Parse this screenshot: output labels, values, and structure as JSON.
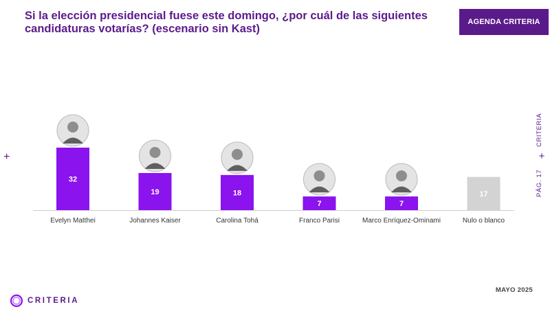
{
  "header": {
    "title_line1": "Si la elección presidencial fuese este domingo, ¿por cuál de las siguientes",
    "title_line2": "candidaturas votarías? (escenario sin Kast)",
    "agenda_button": "AGENDA CRITERIA"
  },
  "side": {
    "brand": "CRITERIA",
    "page": "PÁG. 17"
  },
  "footer": {
    "date": "MAYO 2025",
    "logo_text": "CRITERIA"
  },
  "colors": {
    "primary_bar": "#8a13ee",
    "neutral_bar": "#d3d3d3",
    "brand_dark": "#5b1a8c"
  },
  "chart_data": {
    "type": "bar",
    "categories": [
      "Evelyn Matthei",
      "Johannes Kaiser",
      "Carolina Tohá",
      "Franco Parisi",
      "Marco Enríquez-Ominami",
      "Nulo o blanco"
    ],
    "values": [
      32,
      19,
      18,
      7,
      7,
      17
    ],
    "data_labels": [
      "32",
      "19",
      "18",
      "7",
      "7",
      "17"
    ],
    "has_photo": [
      true,
      true,
      true,
      true,
      true,
      false
    ],
    "bar_colors": [
      "#8a13ee",
      "#8a13ee",
      "#8a13ee",
      "#8a13ee",
      "#8a13ee",
      "#d3d3d3"
    ],
    "ylim": [
      0,
      32
    ],
    "grid": false,
    "legend": "none"
  }
}
